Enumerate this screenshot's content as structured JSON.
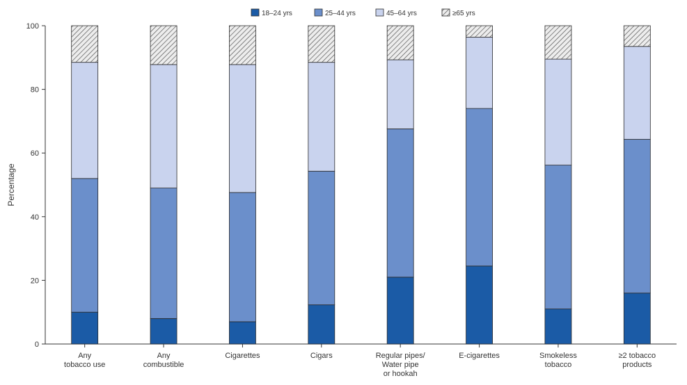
{
  "chart_data": {
    "type": "bar",
    "stacked": true,
    "ylabel": "Percentage",
    "ylim": [
      0,
      100
    ],
    "yticks": [
      0,
      20,
      40,
      60,
      80,
      100
    ],
    "categories": [
      [
        "Any",
        "tobacco use"
      ],
      [
        "Any",
        "combustible"
      ],
      [
        "Cigarettes"
      ],
      [
        "Cigars"
      ],
      [
        "Regular pipes/",
        "Water pipe",
        "or hookah"
      ],
      [
        "E-cigarettes"
      ],
      [
        "Smokeless",
        "tobacco"
      ],
      [
        "≥2 tobacco",
        "products"
      ]
    ],
    "series": [
      {
        "name": "18–24 yrs",
        "color": "#1b5ba6",
        "values": [
          10,
          8,
          7,
          12.3,
          21,
          24.5,
          11,
          16
        ]
      },
      {
        "name": "25–44 yrs",
        "color": "#6b8fcb",
        "values": [
          42,
          41,
          40.6,
          42,
          46.6,
          49.5,
          45.2,
          48.3
        ]
      },
      {
        "name": "45–64 yrs",
        "color": "#c9d3ee",
        "values": [
          36.5,
          38.8,
          40.2,
          34.2,
          21.7,
          22.4,
          33.3,
          29.2
        ]
      },
      {
        "name": "≥65 yrs",
        "color": "hatch",
        "values": [
          11.5,
          12.2,
          12.2,
          11.5,
          10.7,
          3.6,
          10.5,
          6.5
        ]
      }
    ],
    "legend_position": "top-right",
    "grid": false
  }
}
